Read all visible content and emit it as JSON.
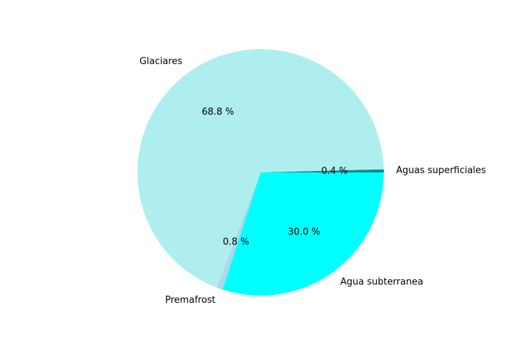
{
  "chart_data": {
    "type": "pie",
    "title": "",
    "start_angle_deg": 0,
    "direction": "counterclockwise",
    "slices": [
      {
        "label": "Aguas superficiales",
        "value": 0.4,
        "pct_label": "0.4 %",
        "color": "#008b8b"
      },
      {
        "label": "Glaciares",
        "value": 68.8,
        "pct_label": "68.8 %",
        "color": "#afeeee"
      },
      {
        "label": "Premafrost",
        "value": 0.8,
        "pct_label": "0.8 %",
        "color": "#add8e6"
      },
      {
        "label": "Agua subterranea",
        "value": 30.0,
        "pct_label": "30.0 %",
        "color": "#00ffff"
      }
    ]
  }
}
